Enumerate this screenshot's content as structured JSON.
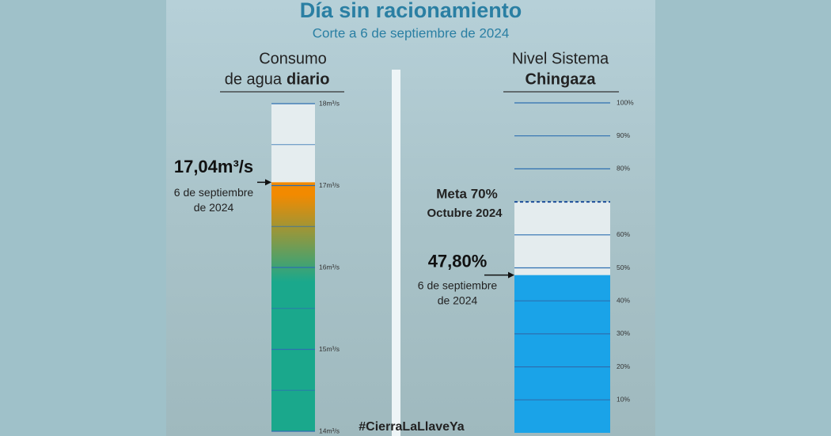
{
  "title": "Día sin racionamiento",
  "subtitle": "Corte a 6 de septiembre de 2024",
  "hashtag": "#CierraLaLlaveYa",
  "chart_data": [
    {
      "type": "gauge",
      "title": [
        "Consumo",
        "de agua",
        "diario"
      ],
      "values": [
        17.04
      ],
      "value_labels": [
        "17,04m³/s"
      ],
      "note": [
        "6 de septiembre",
        "de 2024"
      ],
      "colors": [
        "#f28a00",
        "#1aa88c"
      ],
      "ylim": [
        14,
        18
      ],
      "yticks": [
        {
          "value": 18,
          "label": "18m³/s"
        },
        {
          "value": 17,
          "label": "17m³/s"
        },
        {
          "value": 16,
          "label": "16m³/s"
        },
        {
          "value": 15,
          "label": "15m³/s"
        },
        {
          "value": 14,
          "label": "14m³/s"
        }
      ],
      "minor_ticks": [
        17.5,
        16.5,
        15.5,
        14.5
      ]
    },
    {
      "type": "gauge",
      "title": [
        "Nivel Sistema",
        "Chingaza"
      ],
      "values": [
        47.8
      ],
      "value_labels": [
        "47,80%"
      ],
      "note": [
        "6 de septiembre",
        "de 2024"
      ],
      "color": "#1aa3e8",
      "target": 70,
      "target_labels": [
        "Meta 70%",
        "Octubre 2024"
      ],
      "ylim": [
        0,
        100
      ],
      "yticks": [
        {
          "value": 100,
          "label": "100%"
        },
        {
          "value": 90,
          "label": "90%"
        },
        {
          "value": 80,
          "label": "80%"
        },
        {
          "value": 60,
          "label": "60%"
        },
        {
          "value": 50,
          "label": "50%"
        },
        {
          "value": 40,
          "label": "40%"
        },
        {
          "value": 30,
          "label": "30%"
        },
        {
          "value": 20,
          "label": "20%"
        },
        {
          "value": 10,
          "label": "10%"
        }
      ]
    }
  ]
}
